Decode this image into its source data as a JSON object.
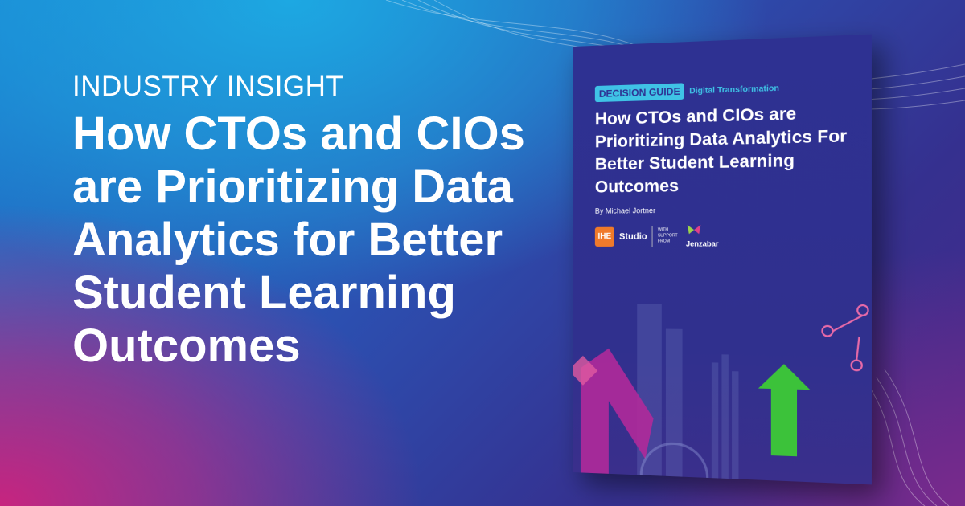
{
  "banner": {
    "eyebrow": "INDUSTRY INSIGHT",
    "headline": "How CTOs and CIOs are Prioritizing Data Analytics for Better Student Learning Outcomes"
  },
  "book": {
    "tag": "DECISION GUIDE",
    "category": "Digital Transformation",
    "title": "How CTOs and CIOs are Prioritizing Data Analytics For Better Student Learning Outcomes",
    "author": "By Michael Jortner",
    "logo_ihe": "IHE",
    "logo_studio": "Studio",
    "support_text": "WITH SUPPORT FROM",
    "sponsor": "Jenzabar"
  },
  "colors": {
    "tag": "#3fc3e6",
    "cover": "#2e3192",
    "orange": "#f07a2a",
    "green": "#3cc23a",
    "magenta": "#c7247f"
  }
}
